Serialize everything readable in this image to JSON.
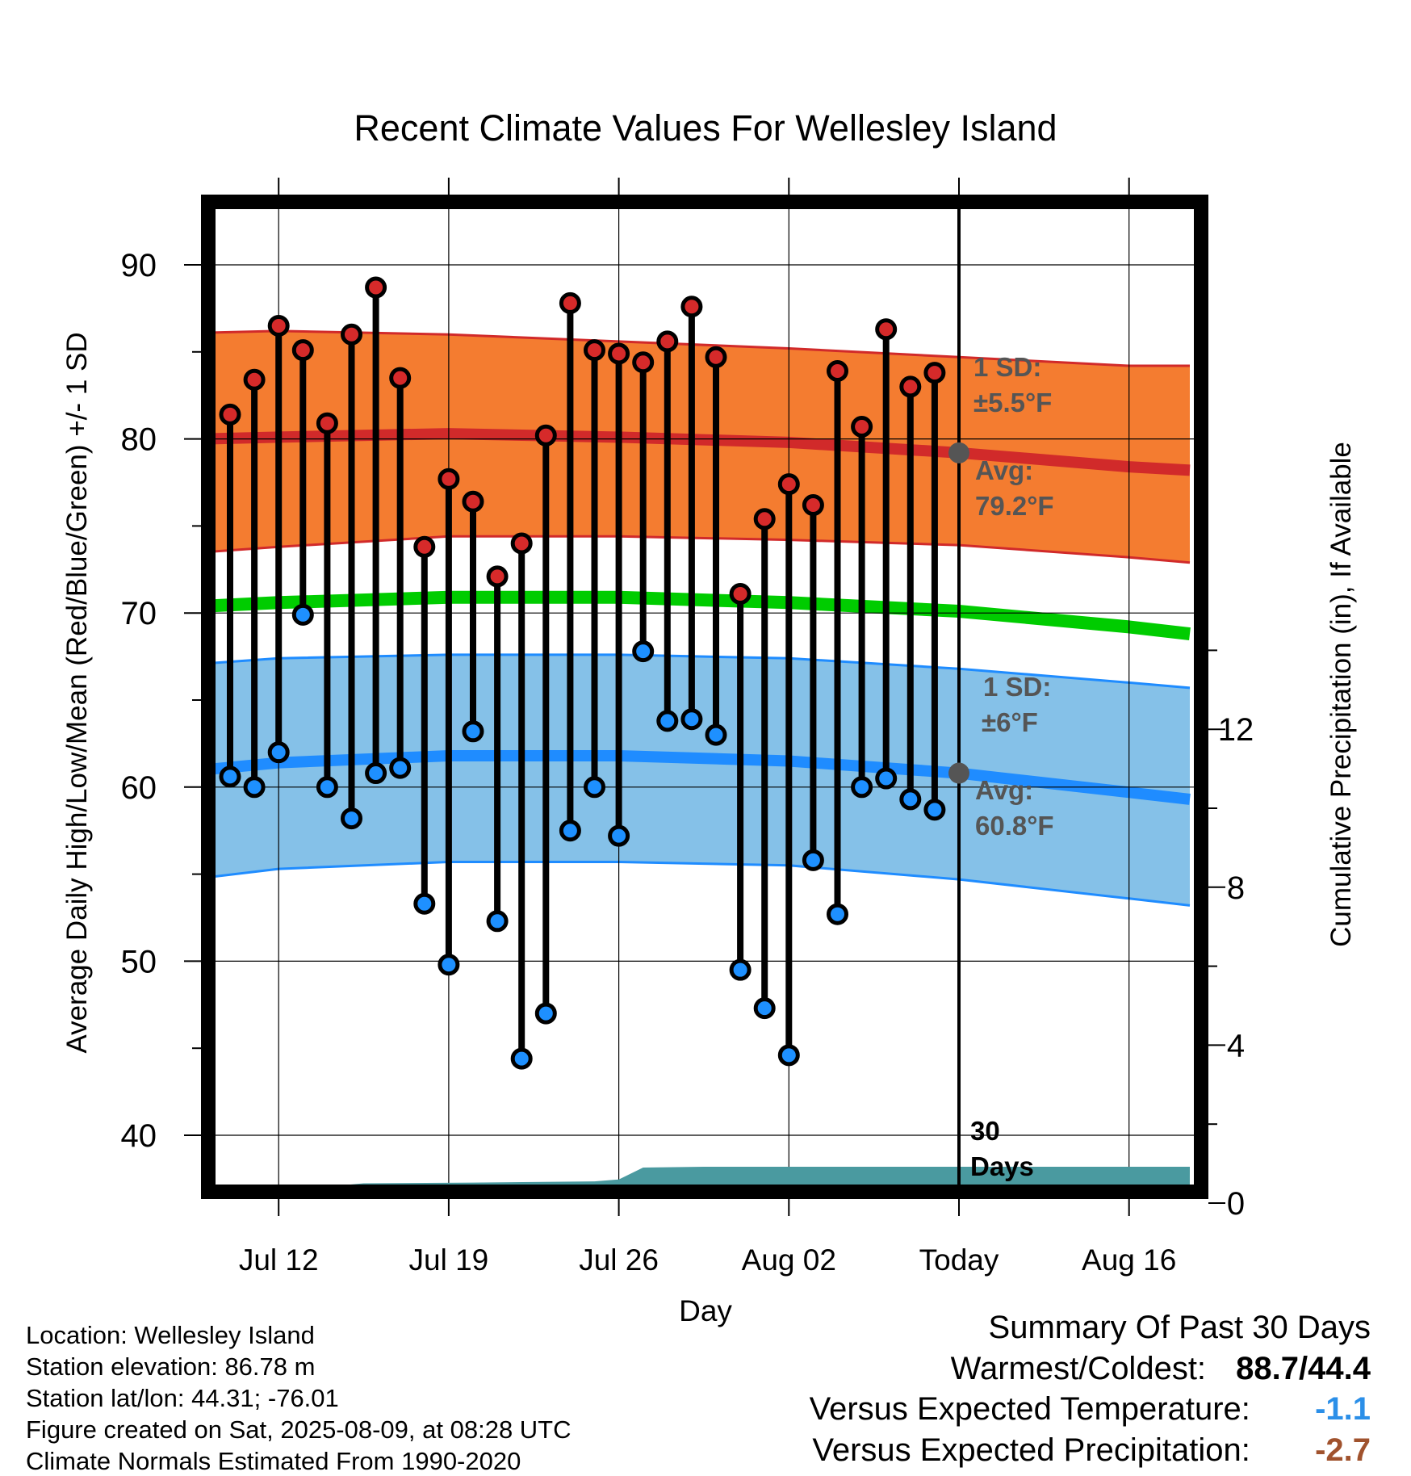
{
  "chart_data": {
    "type": "line",
    "title": "Recent Climate Values For Wellesley Island",
    "xlabel": "Day",
    "ylabel": "Average Daily High/Low/Mean (Red/Blue/Green) +/- 1 SD",
    "y2label": "Cumulative Precipitation (in), If Available",
    "xlim_days": [
      -31,
      19
    ],
    "ylim": [
      36.5,
      94
    ],
    "y2lim": [
      0,
      23.4
    ],
    "x_ticks": [
      {
        "day": -28,
        "label": "Jul 12"
      },
      {
        "day": -21,
        "label": "Jul 19"
      },
      {
        "day": -14,
        "label": "Jul 26"
      },
      {
        "day": -7,
        "label": "Aug 02"
      },
      {
        "day": 0,
        "label": "Today"
      },
      {
        "day": 7,
        "label": "Aug 16"
      }
    ],
    "y_ticks": [
      40,
      50,
      60,
      70,
      80,
      90
    ],
    "y2_ticks": [
      0,
      4,
      8,
      12
    ],
    "grid": true,
    "today_marker": {
      "day": 0,
      "label_number": "30",
      "label_word": "Days"
    },
    "normal_high": {
      "day": [
        -31,
        -28,
        -21,
        -14,
        -7,
        0,
        7,
        9.5
      ],
      "mean": [
        80.0,
        80.1,
        80.3,
        80.1,
        79.8,
        79.2,
        78.4,
        78.2
      ],
      "upper": [
        86.1,
        86.2,
        86.0,
        85.6,
        85.2,
        84.7,
        84.2,
        84.2
      ],
      "lower": [
        73.5,
        73.8,
        74.4,
        74.4,
        74.2,
        73.9,
        73.2,
        72.9
      ]
    },
    "normal_mean": {
      "day": [
        -31,
        -28,
        -21,
        -14,
        -7,
        0,
        7,
        9.5
      ],
      "values": [
        70.4,
        70.6,
        70.9,
        70.9,
        70.6,
        70.1,
        69.2,
        68.8
      ]
    },
    "normal_low": {
      "day": [
        -31,
        -28,
        -21,
        -14,
        -7,
        0,
        7,
        9.5
      ],
      "mean": [
        61.0,
        61.4,
        61.8,
        61.8,
        61.5,
        60.8,
        59.7,
        59.3
      ],
      "upper": [
        67.1,
        67.4,
        67.6,
        67.6,
        67.4,
        66.8,
        66.0,
        65.7
      ],
      "lower": [
        54.8,
        55.3,
        55.7,
        55.7,
        55.5,
        54.7,
        53.6,
        53.2
      ]
    },
    "normal_labels": {
      "high_sd_title": "1 SD:",
      "high_sd_value": "±5.5°F",
      "high_avg_title": "Avg:",
      "high_avg_value": "79.2°F",
      "low_sd_title": "1 SD:",
      "low_sd_value": "±6°F",
      "low_avg_title": "Avg:",
      "low_avg_value": "60.8°F",
      "high_avg": 79.2,
      "low_avg": 60.8
    },
    "daily": {
      "day": [
        -30,
        -29,
        -28,
        -27,
        -26,
        -25,
        -24,
        -23,
        -22,
        -21,
        -20,
        -19,
        -18,
        -17,
        -16,
        -15,
        -14,
        -13,
        -12,
        -11,
        -10,
        -9,
        -8,
        -7,
        -6,
        -5,
        -4,
        -3,
        -2,
        -1
      ],
      "high": [
        81.4,
        83.4,
        86.5,
        85.1,
        80.9,
        86.0,
        88.7,
        83.5,
        73.8,
        77.7,
        76.4,
        72.1,
        74.0,
        80.2,
        87.8,
        85.1,
        84.9,
        84.4,
        85.6,
        87.6,
        84.7,
        71.1,
        75.4,
        77.4,
        76.2,
        83.9,
        80.7,
        86.3,
        83.0,
        83.8
      ],
      "low": [
        60.6,
        60.0,
        62.0,
        69.9,
        60.0,
        58.2,
        60.8,
        61.1,
        53.3,
        49.8,
        63.2,
        52.3,
        44.4,
        47.0,
        57.5,
        60.0,
        57.2,
        67.8,
        63.8,
        63.9,
        63.0,
        49.5,
        47.3,
        44.6,
        55.8,
        52.7,
        60.0,
        60.5,
        59.3,
        58.7
      ]
    },
    "precipitation_cumulative": {
      "day": [
        -31,
        -26,
        -25.4,
        -24.5,
        -20,
        -15,
        -14,
        -13,
        -10.5,
        -5,
        0,
        9.5
      ],
      "values": [
        0,
        0,
        0.45,
        0.5,
        0.52,
        0.55,
        0.6,
        0.9,
        0.92,
        0.92,
        0.92,
        0.92
      ]
    }
  },
  "station": {
    "location": "Location: Wellesley Island",
    "elevation": "Station elevation: 86.78 m",
    "latlon": "Station lat/lon: 44.31; -76.01",
    "created": "Figure created on Sat, 2025-08-09, at 08:28 UTC",
    "normals": "Climate Normals Estimated From 1990-2020"
  },
  "summary": {
    "title": "Summary Of Past 30 Days",
    "warm_cold_label": "Warmest/Coldest:",
    "warm_cold_value": "88.7/44.4",
    "temp_label": "Versus Expected Temperature:",
    "temp_value": "-1.1",
    "precip_label": "Versus Expected Precipitation:",
    "precip_value": "-2.7"
  },
  "colors": {
    "high_band": "#f47c30",
    "high_mean": "#d12a2a",
    "low_band": "#85c1e8",
    "low_mean": "#1f8cff",
    "normal_mean": "#00cc00",
    "precip": "#4a9aa0",
    "high_dot": "#d62a2a",
    "low_dot": "#1e90ff",
    "label_gray": "#555555",
    "temp_anomaly": "#2b8fe8",
    "precip_anomaly": "#a0522d"
  }
}
